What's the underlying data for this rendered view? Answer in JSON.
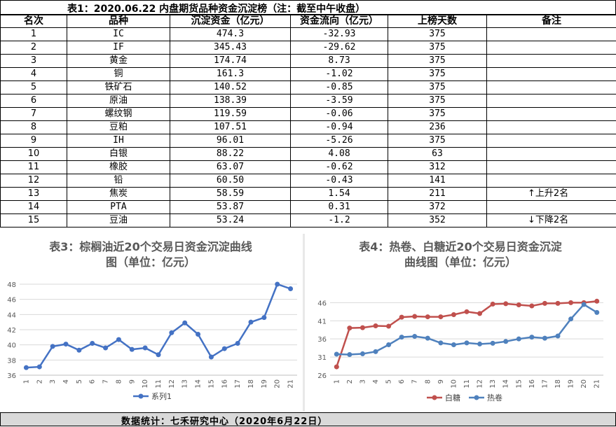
{
  "table1": {
    "title": "表1：2020.06.22 内盘期货品种资金沉淀榜（注：截至中午收盘）",
    "headers": [
      "名次",
      "品种",
      "沉淀资金（亿元）",
      "资金流向（亿元）",
      "上榜天数",
      "备注"
    ],
    "rows": [
      {
        "rank": "1",
        "name": "IC",
        "capital": "474.3",
        "flow": "-32.93",
        "days": "375",
        "note": ""
      },
      {
        "rank": "2",
        "name": "IF",
        "capital": "345.43",
        "flow": "-29.62",
        "days": "375",
        "note": ""
      },
      {
        "rank": "3",
        "name": "黄金",
        "capital": "174.74",
        "flow": "8.73",
        "days": "375",
        "note": ""
      },
      {
        "rank": "4",
        "name": "铜",
        "capital": "161.3",
        "flow": "-1.02",
        "days": "375",
        "note": ""
      },
      {
        "rank": "5",
        "name": "铁矿石",
        "capital": "140.52",
        "flow": "-0.85",
        "days": "375",
        "note": ""
      },
      {
        "rank": "6",
        "name": "原油",
        "capital": "138.39",
        "flow": "-3.59",
        "days": "375",
        "note": ""
      },
      {
        "rank": "7",
        "name": "螺纹钢",
        "capital": "119.59",
        "flow": "-0.06",
        "days": "375",
        "note": ""
      },
      {
        "rank": "8",
        "name": "豆粕",
        "capital": "107.51",
        "flow": "-0.94",
        "days": "236",
        "note": ""
      },
      {
        "rank": "9",
        "name": "IH",
        "capital": "96.01",
        "flow": "-5.26",
        "days": "375",
        "note": ""
      },
      {
        "rank": "10",
        "name": "白银",
        "capital": "88.22",
        "flow": "4.08",
        "days": "63",
        "note": ""
      },
      {
        "rank": "11",
        "name": "橡胶",
        "capital": "63.07",
        "flow": "-0.62",
        "days": "312",
        "note": ""
      },
      {
        "rank": "12",
        "name": "铅",
        "capital": "60.50",
        "flow": "-0.43",
        "days": "141",
        "note": ""
      },
      {
        "rank": "13",
        "name": "焦炭",
        "capital": "58.59",
        "flow": "1.54",
        "days": "211",
        "note": "↑上升2名"
      },
      {
        "rank": "14",
        "name": "PTA",
        "capital": "53.87",
        "flow": "0.31",
        "days": "372",
        "note": ""
      },
      {
        "rank": "15",
        "name": "豆油",
        "capital": "53.24",
        "flow": "-1.2",
        "days": "352",
        "note": "↓下降2名"
      }
    ]
  },
  "chart_data": [
    {
      "type": "line",
      "title_line1": "表3：棕榈油近20个交易日资金沉淀曲线",
      "title_line2": "图（单位：亿元）",
      "x": [
        "1",
        "2",
        "3",
        "4",
        "5",
        "6",
        "7",
        "8",
        "9",
        "10",
        "11",
        "12",
        "13",
        "14",
        "15",
        "16",
        "17",
        "18",
        "19",
        "20",
        "21"
      ],
      "yticks": [
        "48",
        "46",
        "44",
        "42",
        "40",
        "38",
        "36"
      ],
      "ylim": [
        36,
        48
      ],
      "grid": true,
      "legend_position": "bottom",
      "series": [
        {
          "name": "系列1",
          "color": "#4472c4",
          "values": [
            37.0,
            37.1,
            39.8,
            40.1,
            39.3,
            40.2,
            39.6,
            40.7,
            39.4,
            39.6,
            38.7,
            41.6,
            42.9,
            41.4,
            38.4,
            39.5,
            40.2,
            43.0,
            43.6,
            48.0,
            47.4
          ]
        }
      ]
    },
    {
      "type": "line",
      "title_line1": "表4：热卷、白糖近20个交易日资金沉淀",
      "title_line2": "曲线图（单位：亿元）",
      "x": [
        "1",
        "2",
        "3",
        "4",
        "5",
        "6",
        "7",
        "8",
        "9",
        "10",
        "11",
        "12",
        "13",
        "14",
        "15",
        "16",
        "17",
        "18",
        "19",
        "20",
        "21"
      ],
      "yticks": [
        "46",
        "41",
        "36",
        "31",
        "26"
      ],
      "ylim": [
        26,
        48
      ],
      "grid": true,
      "legend_position": "bottom",
      "series": [
        {
          "name": "白糖",
          "color": "#c0504d",
          "values": [
            28.3,
            39.0,
            39.1,
            39.6,
            39.5,
            42.0,
            42.2,
            42.1,
            42.1,
            42.7,
            43.5,
            43.0,
            45.6,
            45.7,
            45.4,
            45.1,
            45.8,
            45.8,
            46.0,
            46.0,
            46.4
          ]
        },
        {
          "name": "热卷",
          "color": "#4f81bd",
          "values": [
            31.8,
            31.7,
            31.9,
            32.5,
            34.4,
            36.5,
            36.7,
            36.2,
            34.9,
            34.4,
            34.9,
            34.6,
            34.8,
            35.3,
            36.0,
            36.5,
            36.2,
            36.8,
            41.5,
            45.5,
            43.3
          ]
        }
      ]
    }
  ],
  "footer": {
    "text": "数据统计：七禾研究中心（2020年6月22日）"
  }
}
